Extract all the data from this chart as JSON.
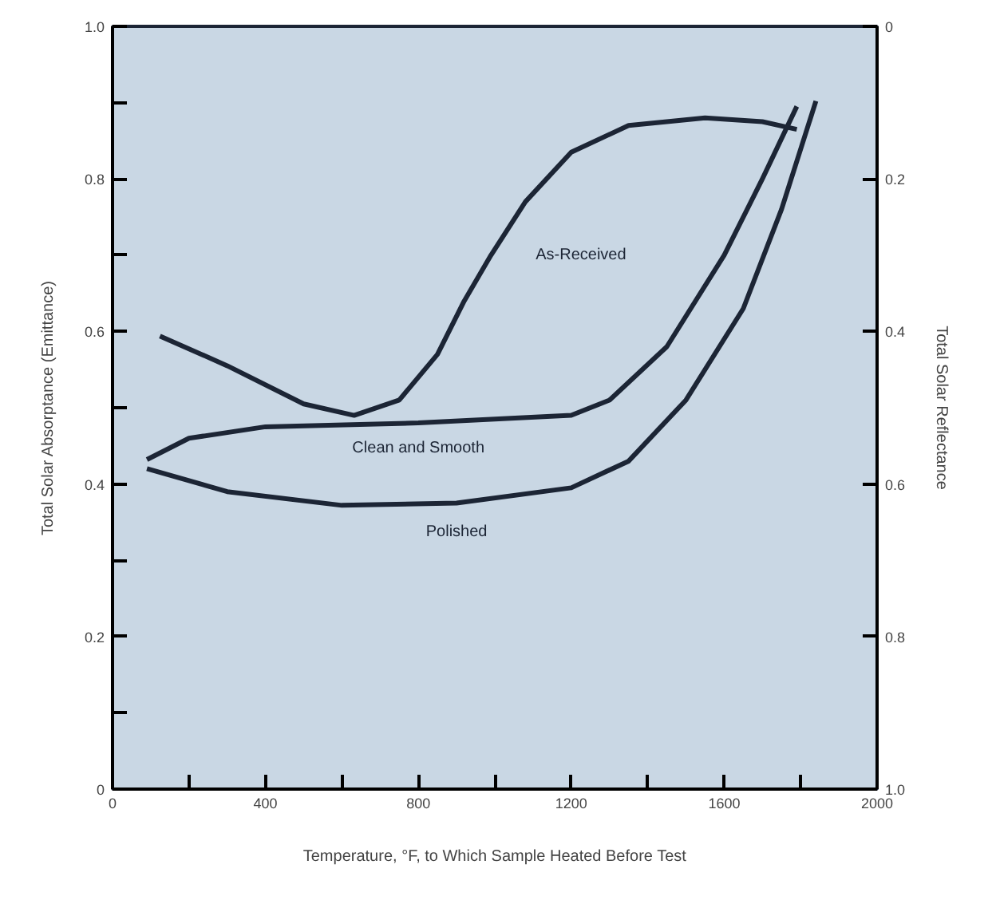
{
  "chart_data": {
    "type": "line",
    "xlabel": "Temperature, °F, to Which Sample Heated Before Test",
    "ylabel": "Total Solar Absorptance (Emittance)",
    "y2label": "Total Solar Reflectance",
    "xlim": [
      0,
      2000
    ],
    "xticks": [
      0,
      {
        "value": 200,
        "label": null
      },
      400,
      {
        "value": 600,
        "label": null
      },
      800,
      {
        "value": 1000,
        "label": null
      },
      1200,
      {
        "value": 1400,
        "label": null
      },
      1600,
      {
        "value": 1800,
        "label": null
      },
      2000
    ],
    "ylim": [
      0,
      1
    ],
    "yticks": [
      0,
      {
        "value": 0.1,
        "label": null
      },
      0.2,
      {
        "value": 0.3,
        "label": null
      },
      0.4,
      {
        "value": 0.5,
        "label": null
      },
      0.6,
      {
        "value": 0.7,
        "label": null
      },
      0.8,
      {
        "value": 0.9,
        "label": null
      },
      {
        "value": 1,
        "label": "1.0"
      }
    ],
    "y2lim": [
      1,
      0
    ],
    "y2ticks": [
      {
        "value": 1,
        "label": "1.0"
      },
      0.8,
      0.6,
      0.4,
      0.2,
      0
    ],
    "grid": false,
    "legend": false,
    "marker": "none",
    "line_style": "solid",
    "series": [
      {
        "name": "As-Received",
        "color": "#1c2535",
        "x": [
          124,
          300,
          500,
          632,
          750,
          850,
          920,
          990,
          1080,
          1200,
          1350,
          1550,
          1700,
          1790
        ],
        "values": [
          0.594,
          0.555,
          0.505,
          0.49,
          0.51,
          0.57,
          0.64,
          0.7,
          0.77,
          0.835,
          0.87,
          0.88,
          0.875,
          0.865
        ]
      },
      {
        "name": "Clean and Smooth",
        "color": "#1c2535",
        "x": [
          90,
          200,
          400,
          800,
          1200,
          1300,
          1450,
          1600,
          1700,
          1790
        ],
        "values": [
          0.432,
          0.46,
          0.475,
          0.48,
          0.49,
          0.51,
          0.58,
          0.7,
          0.8,
          0.895
        ]
      },
      {
        "name": "Polished",
        "color": "#1c2535",
        "x": [
          90,
          300,
          600,
          900,
          1200,
          1350,
          1500,
          1650,
          1750,
          1840
        ],
        "values": [
          0.42,
          0.39,
          0.372,
          0.375,
          0.395,
          0.43,
          0.51,
          0.63,
          0.76,
          0.902
        ]
      }
    ]
  }
}
